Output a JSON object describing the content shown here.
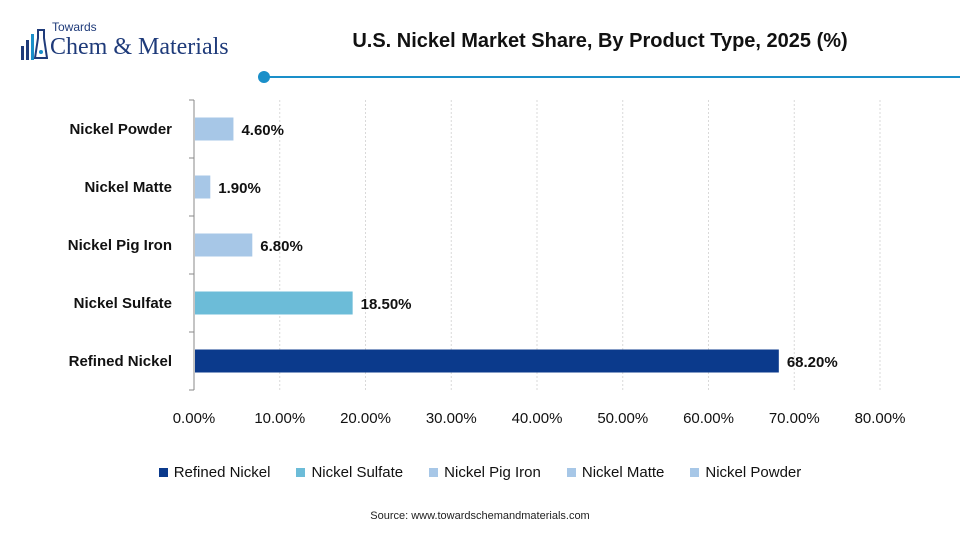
{
  "logo": {
    "line1": "Towards",
    "line2": "Chem & Materials"
  },
  "chart_data": {
    "type": "bar",
    "orientation": "horizontal",
    "title": "U.S. Nickel Market Share, By Product Type, 2025 (%)",
    "categories": [
      "Nickel Powder",
      "Nickel Matte",
      "Nickel Pig Iron",
      "Nickel Sulfate",
      "Refined Nickel"
    ],
    "values": [
      4.6,
      1.9,
      6.8,
      18.5,
      68.2
    ],
    "data_labels": [
      "4.60%",
      "1.90%",
      "6.80%",
      "18.50%",
      "68.20%"
    ],
    "colors": [
      "#a7c7e7",
      "#a7c7e7",
      "#a7c7e7",
      "#6cbcd8",
      "#0b3a8c"
    ],
    "xlim": [
      0,
      80
    ],
    "x_ticks": [
      "0.00%",
      "10.00%",
      "20.00%",
      "30.00%",
      "40.00%",
      "50.00%",
      "60.00%",
      "70.00%",
      "80.00%"
    ],
    "xlabel": "",
    "ylabel": "",
    "grid": true,
    "legend": {
      "placement": "bottom",
      "entries": [
        {
          "label": "Refined Nickel",
          "color": "#0b3a8c"
        },
        {
          "label": "Nickel Sulfate",
          "color": "#6cbcd8"
        },
        {
          "label": "Nickel Pig Iron",
          "color": "#a7c7e7"
        },
        {
          "label": "Nickel Matte",
          "color": "#a7c7e7"
        },
        {
          "label": "Nickel Powder",
          "color": "#a7c7e7"
        }
      ]
    }
  },
  "source": "Source: www.towardschemandmaterials.com"
}
